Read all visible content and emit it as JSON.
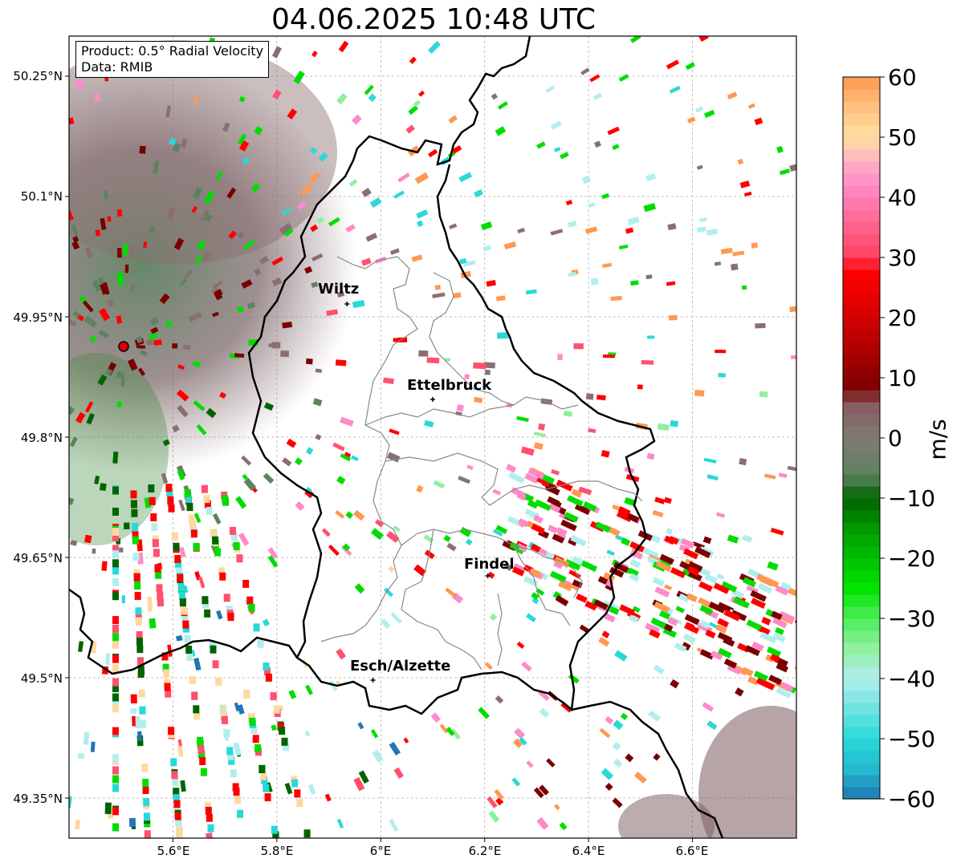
{
  "title": "04.06.2025 10:48 UTC",
  "info": {
    "product": "Product: 0.5° Radial Velocity",
    "data_source": "Data: RMIB"
  },
  "map": {
    "lat_labels": [
      "50.25°N",
      "50.1°N",
      "49.95°N",
      "49.8°N",
      "49.65°N",
      "49.5°N",
      "49.35°N"
    ],
    "lon_labels": [
      "5.6°E",
      "5.8°E",
      "6°E",
      "6.2°E",
      "6.4°E",
      "6.6°E"
    ],
    "cities": [
      {
        "name": "Wiltz",
        "lon": 5.935,
        "lat": 49.966
      },
      {
        "name": "Ettelbruck",
        "lon": 6.1,
        "lat": 49.847
      },
      {
        "name": "Findel",
        "lon": 6.206,
        "lat": 49.627
      },
      {
        "name": "Esch/Alzette",
        "lon": 5.985,
        "lat": 49.497
      }
    ],
    "radar_site": {
      "lon": 5.505,
      "lat": 49.914
    }
  },
  "colorbar": {
    "unit": "m/s",
    "ticks": [
      "60",
      "50",
      "40",
      "30",
      "20",
      "10",
      "0",
      "−10",
      "−20",
      "−30",
      "−40",
      "−50",
      "−60"
    ],
    "min": -60,
    "max": 60,
    "colors": {
      "deep_blue": "#1f77b4",
      "cyan": "#2ad8d8",
      "light_cyan": "#b2eeee",
      "light_green": "#90f0a0",
      "green": "#00dd00",
      "dark_green": "#006400",
      "olive_gray": "#5e8260",
      "mauve_gray": "#8a6f72",
      "maroon": "#7a0000",
      "red": "#ff0000",
      "coral": "#ff5070",
      "pink": "#ff8ac8",
      "peach": "#ffd8a0",
      "orange": "#ff9850"
    }
  }
}
